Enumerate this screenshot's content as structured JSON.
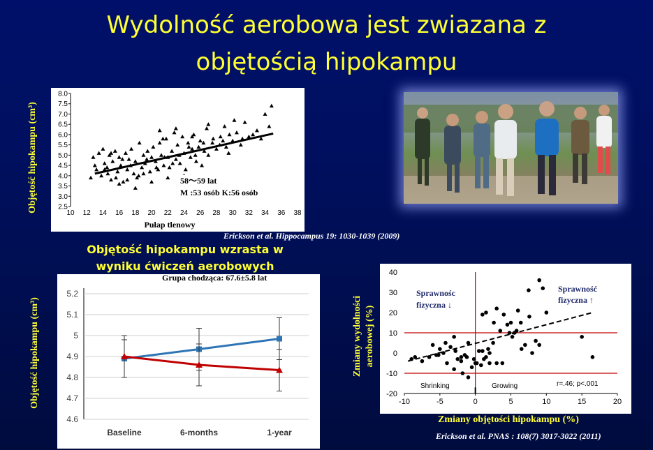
{
  "slide": {
    "title_line1": "Wydolność aerobowa jest zwiazana z",
    "title_line2": "objętością hipokampu",
    "subtitle_line1": "Objętość hipokampu wzrasta w",
    "subtitle_line2": "wyniku ćwiczeń aerobowych",
    "citation1": "Erickson et al. Hippocampus 19: 1030-1039 (2009)",
    "citation2": "Erickson et al. PNAS : 108(7) 3017-3022 (2011)",
    "colors": {
      "background": "#000f5c",
      "title": "#ffff33"
    }
  },
  "chart_data": [
    {
      "type": "scatter",
      "xlabel": "Pułap tlenowy",
      "ylabel": "Objętość hipokampu (cm³)",
      "xlim": [
        10,
        38
      ],
      "ylim": [
        2.5,
        8.0
      ],
      "xticks": [
        "10",
        "12",
        "14",
        "16",
        "18",
        "20",
        "22",
        "24",
        "26",
        "28",
        "30",
        "32",
        "34",
        "36",
        "38"
      ],
      "yticks": [
        "2.5",
        "3.0",
        "3.5",
        "4.0",
        "4.5",
        "5.0",
        "5.5",
        "6.0",
        "6.5",
        "7.0",
        "7.5",
        "8.0"
      ],
      "annotation_line1": "58〜59 lat",
      "annotation_line2": "M :53 osób    K:56 osób",
      "trend": {
        "x": [
          13,
          35
        ],
        "y": [
          4.1,
          6.05
        ]
      },
      "points": {
        "x": [
          12.8,
          13.2,
          13.5,
          13.8,
          14.0,
          14.2,
          14.5,
          14.8,
          15.0,
          15.2,
          15.5,
          15.8,
          16.0,
          16.2,
          16.5,
          16.8,
          17.0,
          17.2,
          17.5,
          17.8,
          18.0,
          18.2,
          18.5,
          18.8,
          19.0,
          19.2,
          19.5,
          19.8,
          20.0,
          20.2,
          20.5,
          20.8,
          21.0,
          21.2,
          21.5,
          21.8,
          22.0,
          22.2,
          22.5,
          22.8,
          23.0,
          23.2,
          23.5,
          23.8,
          24.0,
          24.2,
          24.5,
          24.8,
          25.0,
          25.2,
          25.5,
          25.8,
          26.0,
          26.2,
          26.5,
          26.8,
          27.0,
          27.5,
          28.0,
          28.5,
          29.0,
          29.5,
          30.0,
          30.5,
          31.0,
          31.5,
          32.0,
          33.0,
          34.0,
          34.8,
          13.0,
          14.6,
          15.6,
          16.4,
          17.4,
          18.4,
          19.4,
          20.6,
          21.6,
          22.6,
          23.4,
          24.6,
          25.4,
          26.4,
          27.6,
          28.4,
          29.6,
          31.2,
          16.0,
          18.0,
          20.0,
          22.0,
          24.0,
          17.0,
          19.0,
          21.0,
          23.0,
          25.0,
          15.0,
          27.0,
          34.5,
          30.2,
          28.8,
          32.5,
          12.5,
          14.2,
          33.5,
          29.2,
          21.4
        ],
        "y": [
          4.9,
          4.3,
          5.1,
          4.0,
          5.3,
          4.6,
          4.4,
          5.0,
          3.8,
          4.7,
          5.2,
          4.2,
          4.9,
          4.5,
          3.7,
          5.1,
          4.3,
          4.8,
          5.3,
          4.1,
          4.7,
          3.9,
          5.6,
          4.4,
          5.0,
          4.6,
          5.2,
          4.2,
          4.9,
          5.4,
          4.7,
          4.3,
          6.2,
          5.0,
          4.5,
          5.8,
          4.9,
          4.4,
          5.2,
          6.1,
          4.8,
          5.5,
          4.6,
          5.9,
          5.1,
          4.3,
          5.6,
          4.9,
          5.3,
          6.0,
          4.7,
          5.4,
          5.7,
          4.5,
          5.2,
          6.3,
          5.0,
          5.6,
          5.3,
          5.9,
          6.4,
          5.1,
          5.7,
          6.1,
          5.5,
          6.6,
          5.9,
          6.2,
          7.0,
          7.4,
          4.5,
          4.1,
          3.9,
          4.8,
          4.5,
          4.0,
          4.8,
          4.4,
          4.9,
          4.6,
          5.0,
          5.4,
          5.0,
          5.6,
          5.8,
          5.5,
          6.0,
          5.8,
          3.6,
          3.4,
          3.7,
          3.9,
          4.0,
          3.8,
          4.1,
          5.6,
          6.3,
          5.9,
          5.1,
          6.5,
          6.4,
          6.7,
          5.7,
          6.0,
          3.9,
          4.3,
          5.8,
          5.4,
          5.8
        ]
      }
    },
    {
      "type": "line",
      "ylabel": "Objętość hipokampu (cm³)",
      "annotation": "Grupa chodząca: 67.6±5.8 lat",
      "categories": [
        "Baseline",
        "6-months",
        "1-year"
      ],
      "ylim": [
        4.6,
        5.2
      ],
      "yticks": [
        "4.6",
        "4.7",
        "4.8",
        "4.9",
        "5",
        "5.1",
        "5.2"
      ],
      "series": [
        {
          "values": [
            4.89,
            4.935,
            4.985
          ],
          "err": [
            0.09,
            0.1,
            0.1
          ],
          "color": "#2e75b6",
          "marker": "square"
        },
        {
          "values": [
            4.9,
            4.86,
            4.835
          ],
          "err": [
            0.1,
            0.1,
            0.1
          ],
          "color": "#c00000",
          "marker": "triangle"
        }
      ]
    },
    {
      "type": "scatter",
      "xlabel": "Zmiany objętości hipokampu (%)",
      "ylabel": "Zmiany wydolności aerobowej (%)",
      "xlim": [
        -10,
        20
      ],
      "ylim": [
        -20,
        40
      ],
      "xticks": [
        "-10",
        "-5",
        "0",
        "5",
        "10",
        "15",
        "20"
      ],
      "yticks": [
        "-20",
        "-10",
        "0",
        "10",
        "20",
        "30",
        "40"
      ],
      "label_low_line1": "Sprawnośc",
      "label_low_line2": "fizyczna ↓",
      "label_high_line1": "Sprawność",
      "label_high_line2": "fizyczna ↑",
      "label_shrinking": "Shrinking",
      "label_growing": "Growing",
      "stat": "r=.46; p<.001",
      "hlines": [
        10,
        -10
      ],
      "vline": 0,
      "trend": {
        "x": [
          -9.5,
          16.5
        ],
        "y": [
          -4,
          20
        ]
      },
      "points": {
        "x": [
          -9,
          -8.5,
          -6,
          -5.5,
          -5,
          -4.5,
          -4,
          -3.5,
          -3,
          -2.5,
          -2,
          -1.5,
          -1,
          -0.5,
          0.5,
          1,
          1.5,
          2,
          2.5,
          3,
          3.5,
          4,
          4.5,
          5,
          5.5,
          6,
          6.5,
          7,
          7.5,
          8,
          8.5,
          9,
          9.5,
          10,
          -3,
          -2,
          -1,
          0,
          1,
          2,
          3,
          -6.5,
          -4.2,
          -1.2,
          0.2,
          1.2,
          2.6,
          4.8,
          5.8,
          6.4,
          9,
          15,
          16.5,
          1.5,
          -2.8,
          -0.2,
          3.8,
          5.2,
          7.6,
          -7.5,
          -5.2,
          0.8,
          1.8,
          -1.8
        ],
        "y": [
          -3,
          -2,
          4,
          -1,
          2,
          0,
          -5,
          3,
          8,
          -3,
          -4,
          -1,
          5,
          -7,
          1,
          19,
          -2,
          -5,
          5,
          22,
          11,
          19,
          14,
          15,
          10,
          21,
          2,
          4,
          31,
          0,
          6,
          36,
          32,
          20,
          -8,
          -2,
          -12,
          -5,
          1,
          0,
          -5,
          -2,
          5,
          -2,
          -5,
          -3,
          15,
          10,
          11,
          15,
          4,
          8,
          -2,
          20,
          1,
          -3,
          -5,
          8,
          18,
          -4,
          -1,
          -6,
          2,
          -10
        ]
      }
    }
  ]
}
